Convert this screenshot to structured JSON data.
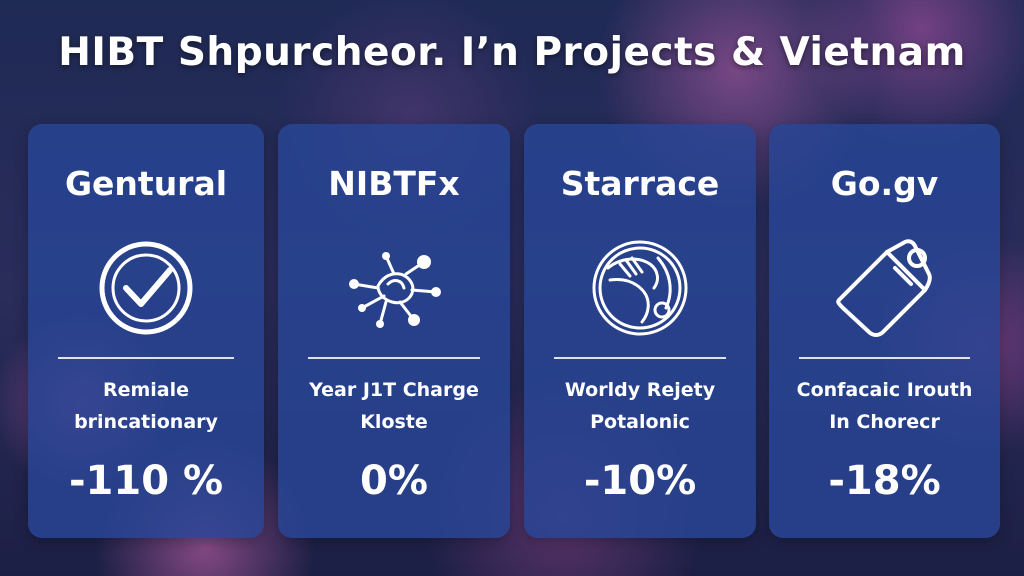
{
  "title": "HIBT Shpurcheor. I’n Projects & Vietnam",
  "cards": [
    {
      "title": "Gentural",
      "icon": "checkmark-circle-icon",
      "desc_line1": "Remiale",
      "desc_line2": "brincationary",
      "value": "-110 %"
    },
    {
      "title": "NIBTFx",
      "icon": "network-nodes-icon",
      "desc_line1": "Year J1T Charge",
      "desc_line2": "Kloste",
      "value": "0%"
    },
    {
      "title": "Starrace",
      "icon": "globe-icon",
      "desc_line1": "Worldy Rejety",
      "desc_line2": "Potalonic",
      "value": "-10%"
    },
    {
      "title": "Go.gv",
      "icon": "document-tag-icon",
      "desc_line1": "Confacaic Irouth",
      "desc_line2": "In Chorecr",
      "value": "-18%"
    }
  ]
}
